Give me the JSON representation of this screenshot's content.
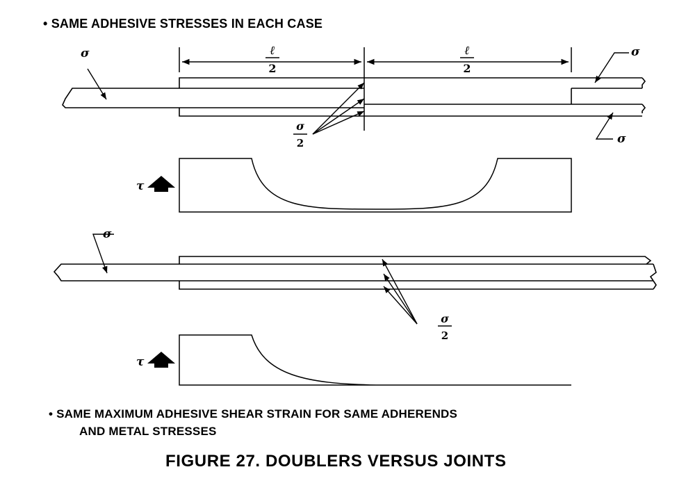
{
  "header": {
    "bullet_top": "• SAME ADHESIVE STRESSES IN EACH CASE"
  },
  "diagram": {
    "sigma": "σ",
    "tau": "τ",
    "ell": "ℓ",
    "two": "2"
  },
  "footer": {
    "bullet_line1": "• SAME MAXIMUM ADHESIVE SHEAR STRAIN FOR SAME ADHERENDS",
    "bullet_line2": "AND METAL STRESSES",
    "caption": "FIGURE 27.  DOUBLERS VERSUS JOINTS"
  },
  "colors": {
    "ink": "#000000",
    "paper": "#ffffff"
  }
}
